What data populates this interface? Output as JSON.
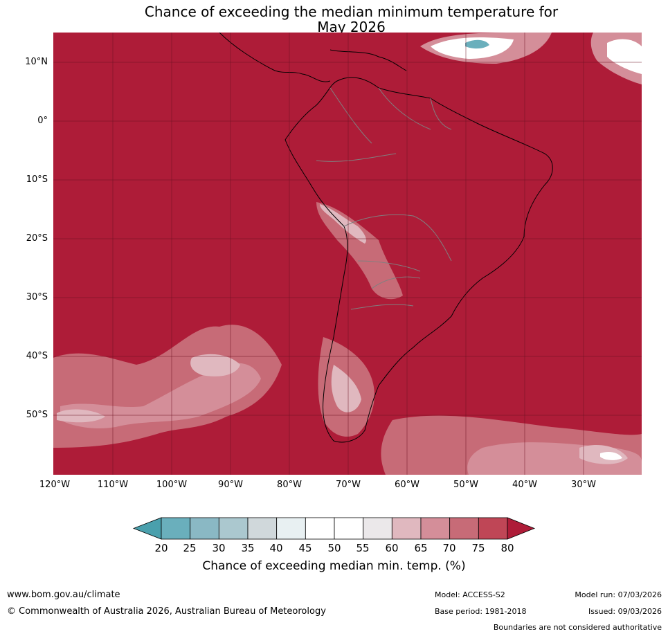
{
  "title": {
    "line1": "Chance of exceeding the median minimum temperature for",
    "line2": "May 2026"
  },
  "map": {
    "background_color": "#ae1c38",
    "lat_labels": [
      "10°N",
      "0°",
      "10°S",
      "20°S",
      "30°S",
      "40°S",
      "50°S"
    ],
    "lon_labels": [
      "120°W",
      "110°W",
      "100°W",
      "90°W",
      "80°W",
      "70°W",
      "60°W",
      "50°W",
      "40°W",
      "30°W"
    ]
  },
  "colorbar": {
    "ticks": [
      "20",
      "25",
      "30",
      "35",
      "40",
      "45",
      "50",
      "55",
      "60",
      "65",
      "70",
      "75",
      "80"
    ],
    "colors": [
      "#4aa0ad",
      "#6aafbc",
      "#8ab8c4",
      "#abc8cf",
      "#d0d8db",
      "#e8f0f2",
      "#ffffff",
      "#ffffff",
      "#ebe8ea",
      "#e0b8bf",
      "#d48e99",
      "#c76b77",
      "#bf4656",
      "#ae1c38"
    ],
    "label": "Chance of exceeding median min. temp. (%)"
  },
  "footer": {
    "url": "www.bom.gov.au/climate",
    "copyright": "© Commonwealth of Australia 2026, Australian Bureau of Meteorology",
    "model": "Model: ACCESS-S2",
    "base_period": "Base period: 1981-2018",
    "model_run": "Model run: 07/03/2026",
    "issued": "Issued: 09/03/2026",
    "boundaries": "Boundaries are not considered authoritative"
  }
}
